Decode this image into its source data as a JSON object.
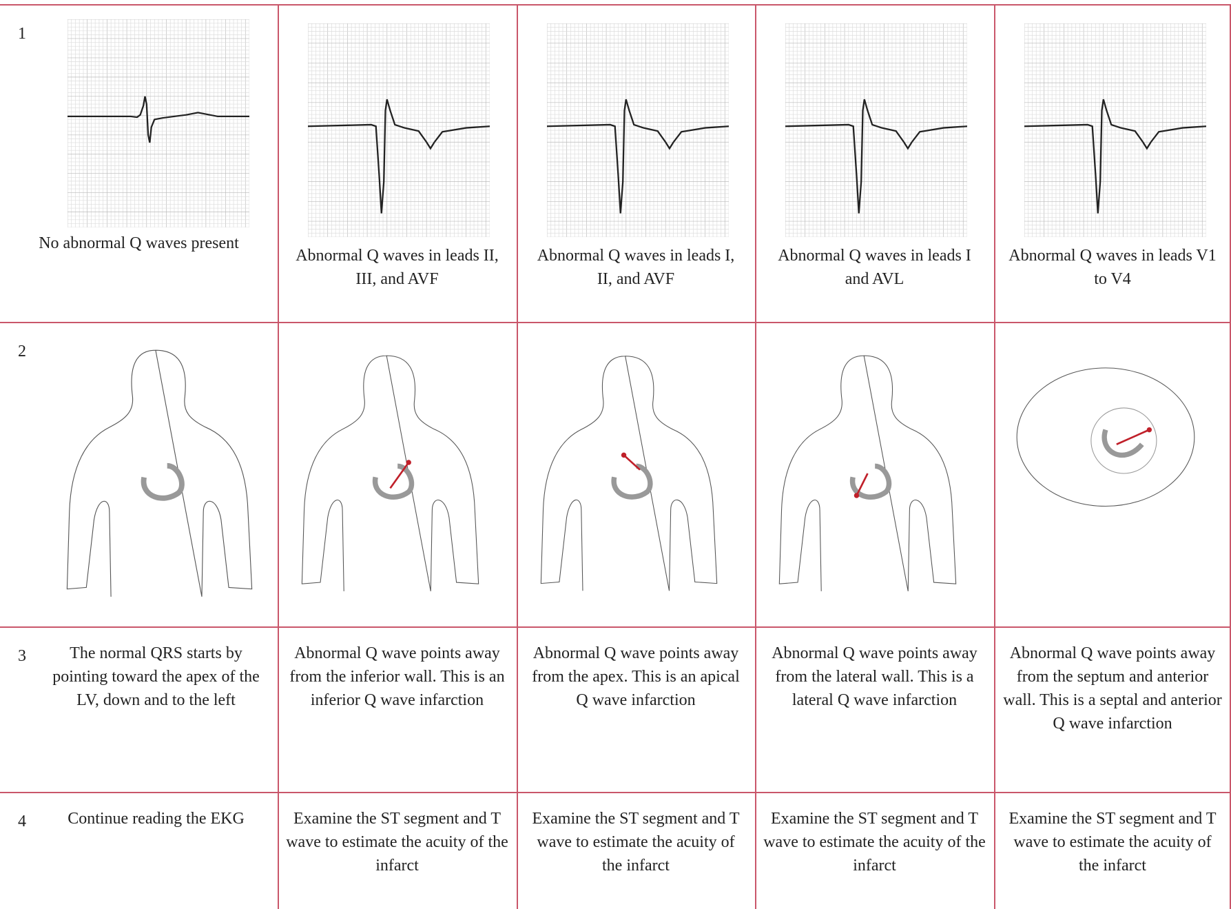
{
  "rows": [
    {
      "number": "1",
      "cells": [
        "No abnormal Q waves present",
        "Abnormal Q waves in leads II, III, and AVF",
        "Abnormal Q waves in leads I, II, and AVF",
        "Abnormal Q waves in leads I and AVL",
        "Abnormal Q waves in leads V1 to V4"
      ]
    },
    {
      "number": "2"
    },
    {
      "number": "3",
      "cells": [
        "The normal QRS starts by pointing toward the apex of the LV, down and to the left",
        "Abnormal Q wave points away from the inferior wall. This is an inferior Q wave infarction",
        "Abnormal Q wave points away from the apex. This is an apical Q wave infarction",
        "Abnormal Q wave points away from the lateral wall. This is a lateral Q wave infarction",
        "Abnormal Q wave points away from the septum and anterior wall. This is a septal and anterior Q wave infarction"
      ]
    },
    {
      "number": "4",
      "cells": [
        "Continue reading the EKG",
        "Examine the ST segment and T wave to estimate the acuity of the infarct",
        "Examine the ST segment and T wave to estimate the acuity of the infarct",
        "Examine the ST segment and T wave to estimate the acuity of the infarct",
        "Examine the ST segment and T wave to estimate the acuity of the infarct"
      ]
    }
  ]
}
